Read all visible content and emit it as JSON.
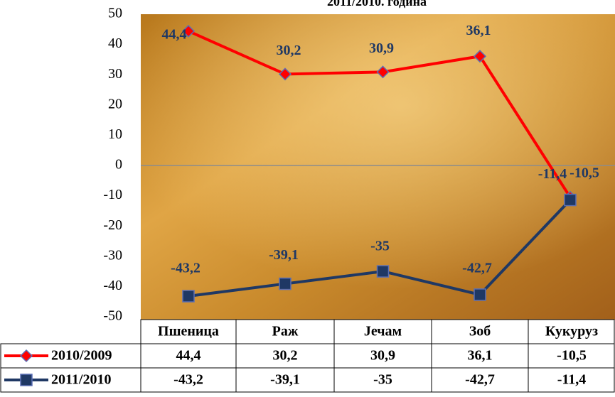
{
  "chart_data": {
    "type": "line",
    "title": "2011/2010. година",
    "categories": [
      "Пшеница",
      "Раж",
      "Јечам",
      "Зоб",
      "Кукуруз"
    ],
    "series": [
      {
        "name": "2010/2009",
        "color": "#ff0000",
        "values": [
          44.4,
          30.2,
          30.9,
          36.1,
          -10.5
        ],
        "value_labels": [
          "44,4",
          "30,2",
          "30,9",
          "36,1",
          "-10,5"
        ]
      },
      {
        "name": "2011/2010",
        "color": "#1f3864",
        "values": [
          -43.2,
          -39.1,
          -35,
          -42.7,
          -11.4
        ],
        "value_labels": [
          "-43,2",
          "-39,1",
          "-35",
          "-42,7",
          "-11,4"
        ]
      }
    ],
    "ylim": [
      -50,
      50
    ],
    "yticks": [
      -50,
      -40,
      -30,
      -20,
      -10,
      0,
      10,
      20,
      30,
      40,
      50
    ]
  }
}
